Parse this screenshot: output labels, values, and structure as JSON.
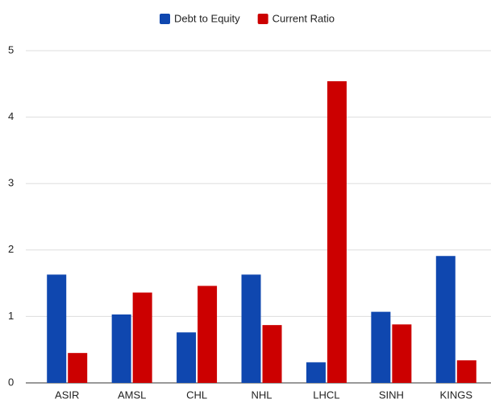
{
  "chart_data": {
    "type": "bar",
    "categories": [
      "ASIR",
      "AMSL",
      "CHL",
      "NHL",
      "LHCL",
      "SINH",
      "KINGS"
    ],
    "series": [
      {
        "name": "Debt to Equity",
        "color": "#0f47af",
        "values": [
          1.63,
          1.03,
          0.76,
          1.63,
          0.31,
          1.07,
          1.91
        ]
      },
      {
        "name": "Current Ratio",
        "color": "#cc0000",
        "values": [
          0.45,
          1.36,
          1.46,
          0.87,
          4.54,
          0.88,
          0.34
        ]
      }
    ],
    "ylim": [
      0,
      5
    ],
    "yticks": [
      0,
      1,
      2,
      3,
      4,
      5
    ],
    "grid": true,
    "legend": "top"
  }
}
